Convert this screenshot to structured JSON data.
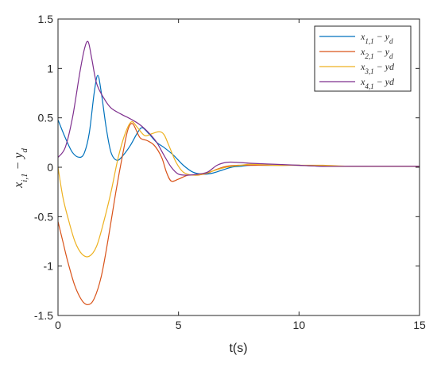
{
  "chart_data": {
    "type": "line",
    "xlabel": "t(s)",
    "ylabel": {
      "base": "x",
      "sub": "i,1",
      "rest": " − y",
      "rest_sub": "d"
    },
    "xlim": [
      0,
      15
    ],
    "ylim": [
      -1.5,
      1.5
    ],
    "xticks": [
      0,
      5,
      10,
      15
    ],
    "xtick_labels": [
      "0",
      "5",
      "10",
      "15"
    ],
    "yticks": [
      -1.5,
      -1,
      -0.5,
      0,
      0.5,
      1,
      1.5
    ],
    "ytick_labels": [
      "-1.5",
      "-1",
      "-0.5",
      "0",
      "0.5",
      "1",
      "1.5"
    ],
    "grid": false,
    "legend_position": "top-right",
    "series": [
      {
        "name": "x1,1 − yd",
        "label": {
          "base": "x",
          "sub": "1,1",
          "rest": " − y",
          "rest_sub": "d"
        },
        "color": "#0072BD",
        "x": [
          0,
          0.3,
          0.6,
          0.9,
          1.1,
          1.3,
          1.5,
          1.65,
          1.8,
          2.0,
          2.2,
          2.45,
          2.7,
          3.0,
          3.3,
          3.5,
          3.8,
          4.1,
          4.4,
          4.8,
          5.2,
          5.6,
          6.0,
          6.4,
          6.8,
          7.2,
          7.6,
          8.0,
          9.0,
          10.0,
          11.0,
          12.0,
          13.0,
          14.0,
          15.0
        ],
        "y": [
          0.48,
          0.3,
          0.15,
          0.1,
          0.15,
          0.35,
          0.75,
          0.93,
          0.75,
          0.4,
          0.15,
          0.07,
          0.12,
          0.22,
          0.35,
          0.4,
          0.33,
          0.25,
          0.2,
          0.12,
          0.02,
          -0.05,
          -0.07,
          -0.06,
          -0.03,
          0.0,
          0.01,
          0.02,
          0.02,
          0.02,
          0.01,
          0.01,
          0.01,
          0.01,
          0.01
        ]
      },
      {
        "name": "x2,1 − yd",
        "label": {
          "base": "x",
          "sub": "2,1",
          "rest": " − y",
          "rest_sub": "d"
        },
        "color": "#D95319",
        "x": [
          0,
          0.2,
          0.4,
          0.7,
          1.0,
          1.25,
          1.5,
          1.8,
          2.1,
          2.4,
          2.7,
          2.9,
          3.1,
          3.4,
          3.7,
          4.0,
          4.3,
          4.5,
          4.7,
          5.0,
          5.4,
          5.8,
          6.2,
          6.6,
          7.0,
          7.5,
          8.0,
          9.0,
          10.0,
          11.0,
          12.0,
          13.0,
          14.0,
          15.0
        ],
        "y": [
          -0.55,
          -0.75,
          -0.95,
          -1.2,
          -1.35,
          -1.39,
          -1.33,
          -1.1,
          -0.7,
          -0.25,
          0.15,
          0.38,
          0.44,
          0.3,
          0.27,
          0.22,
          0.1,
          -0.05,
          -0.14,
          -0.12,
          -0.08,
          -0.08,
          -0.06,
          -0.02,
          0.01,
          0.02,
          0.02,
          0.02,
          0.02,
          0.01,
          0.01,
          0.01,
          0.01,
          0.01
        ]
      },
      {
        "name": "x3,1 − yd",
        "label": {
          "base": "x",
          "sub": "3,1",
          "rest": " − yd",
          "rest_sub": ""
        },
        "color": "#EDB120",
        "x": [
          0,
          0.2,
          0.4,
          0.7,
          1.0,
          1.3,
          1.6,
          1.9,
          2.2,
          2.5,
          2.8,
          3.05,
          3.3,
          3.6,
          3.9,
          4.2,
          4.4,
          4.6,
          4.9,
          5.2,
          5.6,
          6.0,
          6.4,
          6.8,
          7.2,
          7.6,
          8.0,
          9.0,
          10.0,
          11.0,
          12.0,
          13.0,
          14.0,
          15.0
        ],
        "y": [
          0.0,
          -0.3,
          -0.5,
          -0.75,
          -0.88,
          -0.9,
          -0.8,
          -0.55,
          -0.25,
          0.1,
          0.35,
          0.46,
          0.4,
          0.32,
          0.34,
          0.36,
          0.33,
          0.22,
          0.05,
          -0.05,
          -0.08,
          -0.07,
          -0.04,
          -0.01,
          0.01,
          0.02,
          0.03,
          0.02,
          0.02,
          0.02,
          0.01,
          0.01,
          0.01,
          0.01
        ]
      },
      {
        "name": "x4,1 − yd",
        "label": {
          "base": "x",
          "sub": "4,1",
          "rest": " − yd",
          "rest_sub": ""
        },
        "color": "#7E2F8E",
        "x": [
          0,
          0.3,
          0.6,
          0.9,
          1.1,
          1.25,
          1.4,
          1.6,
          1.9,
          2.2,
          2.6,
          3.0,
          3.4,
          3.8,
          4.1,
          4.4,
          4.7,
          5.0,
          5.4,
          5.8,
          6.2,
          6.6,
          7.0,
          7.4,
          8.0,
          9.0,
          10.0,
          11.0,
          12.0,
          13.0,
          14.0,
          15.0
        ],
        "y": [
          0.1,
          0.2,
          0.5,
          0.95,
          1.2,
          1.27,
          1.1,
          0.85,
          0.7,
          0.6,
          0.54,
          0.49,
          0.43,
          0.34,
          0.25,
          0.12,
          0.0,
          -0.07,
          -0.08,
          -0.07,
          -0.05,
          0.02,
          0.05,
          0.05,
          0.04,
          0.03,
          0.02,
          0.01,
          0.01,
          0.01,
          0.01,
          0.01
        ]
      }
    ]
  }
}
